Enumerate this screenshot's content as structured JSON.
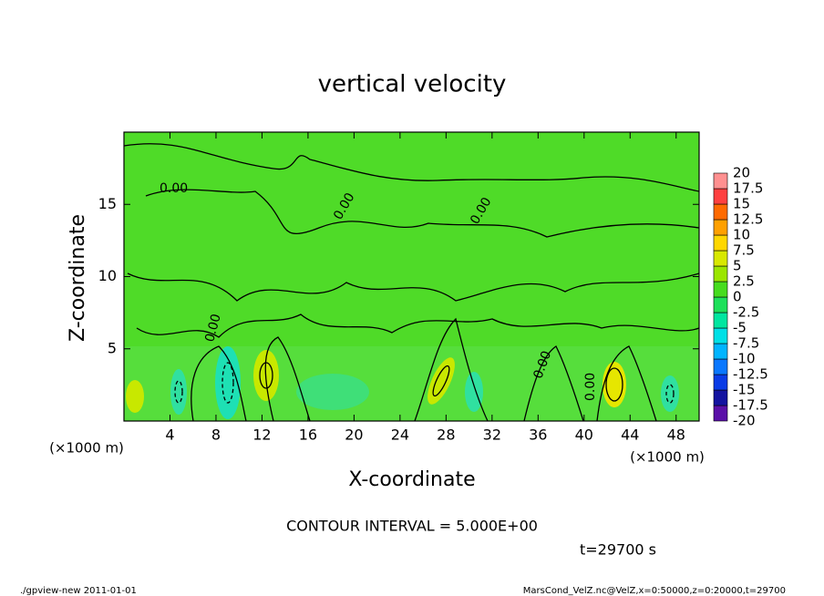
{
  "chart_data": {
    "type": "contour",
    "title": "vertical velocity",
    "x_label": "X-coordinate",
    "y_label": "Z-coordinate",
    "x_unit": "(×1000 m)",
    "xlim": [
      0,
      50
    ],
    "xticks": [
      4,
      8,
      12,
      16,
      20,
      24,
      28,
      32,
      36,
      40,
      44,
      48
    ],
    "ylim": [
      0,
      20
    ],
    "yticks": [
      5,
      10,
      15
    ],
    "contour_label": "0.00",
    "contour_interval": "CONTOUR INTERVAL = 5.000E+00",
    "time": "t=29700 s",
    "footer_left": "./gpview-new  2011-01-01",
    "footer_right": "MarsCond_VelZ.nc@VelZ,x=0:50000,z=0:20000,t=29700",
    "colorbar": {
      "levels": [
        -20,
        -17.5,
        -15,
        -12.5,
        -10,
        -7.5,
        -5,
        -2.5,
        0,
        2.5,
        5,
        7.5,
        10,
        12.5,
        15,
        17.5,
        20
      ],
      "colors": [
        "#5a10a8",
        "#1414a0",
        "#0a3ce6",
        "#0a78ff",
        "#00b4ff",
        "#00e0e6",
        "#00e6a0",
        "#1ee05a",
        "#46dc1e",
        "#9be600",
        "#d8e800",
        "#ffd700",
        "#ffa000",
        "#ff6a00",
        "#ff4040",
        "#ff9090"
      ]
    }
  }
}
